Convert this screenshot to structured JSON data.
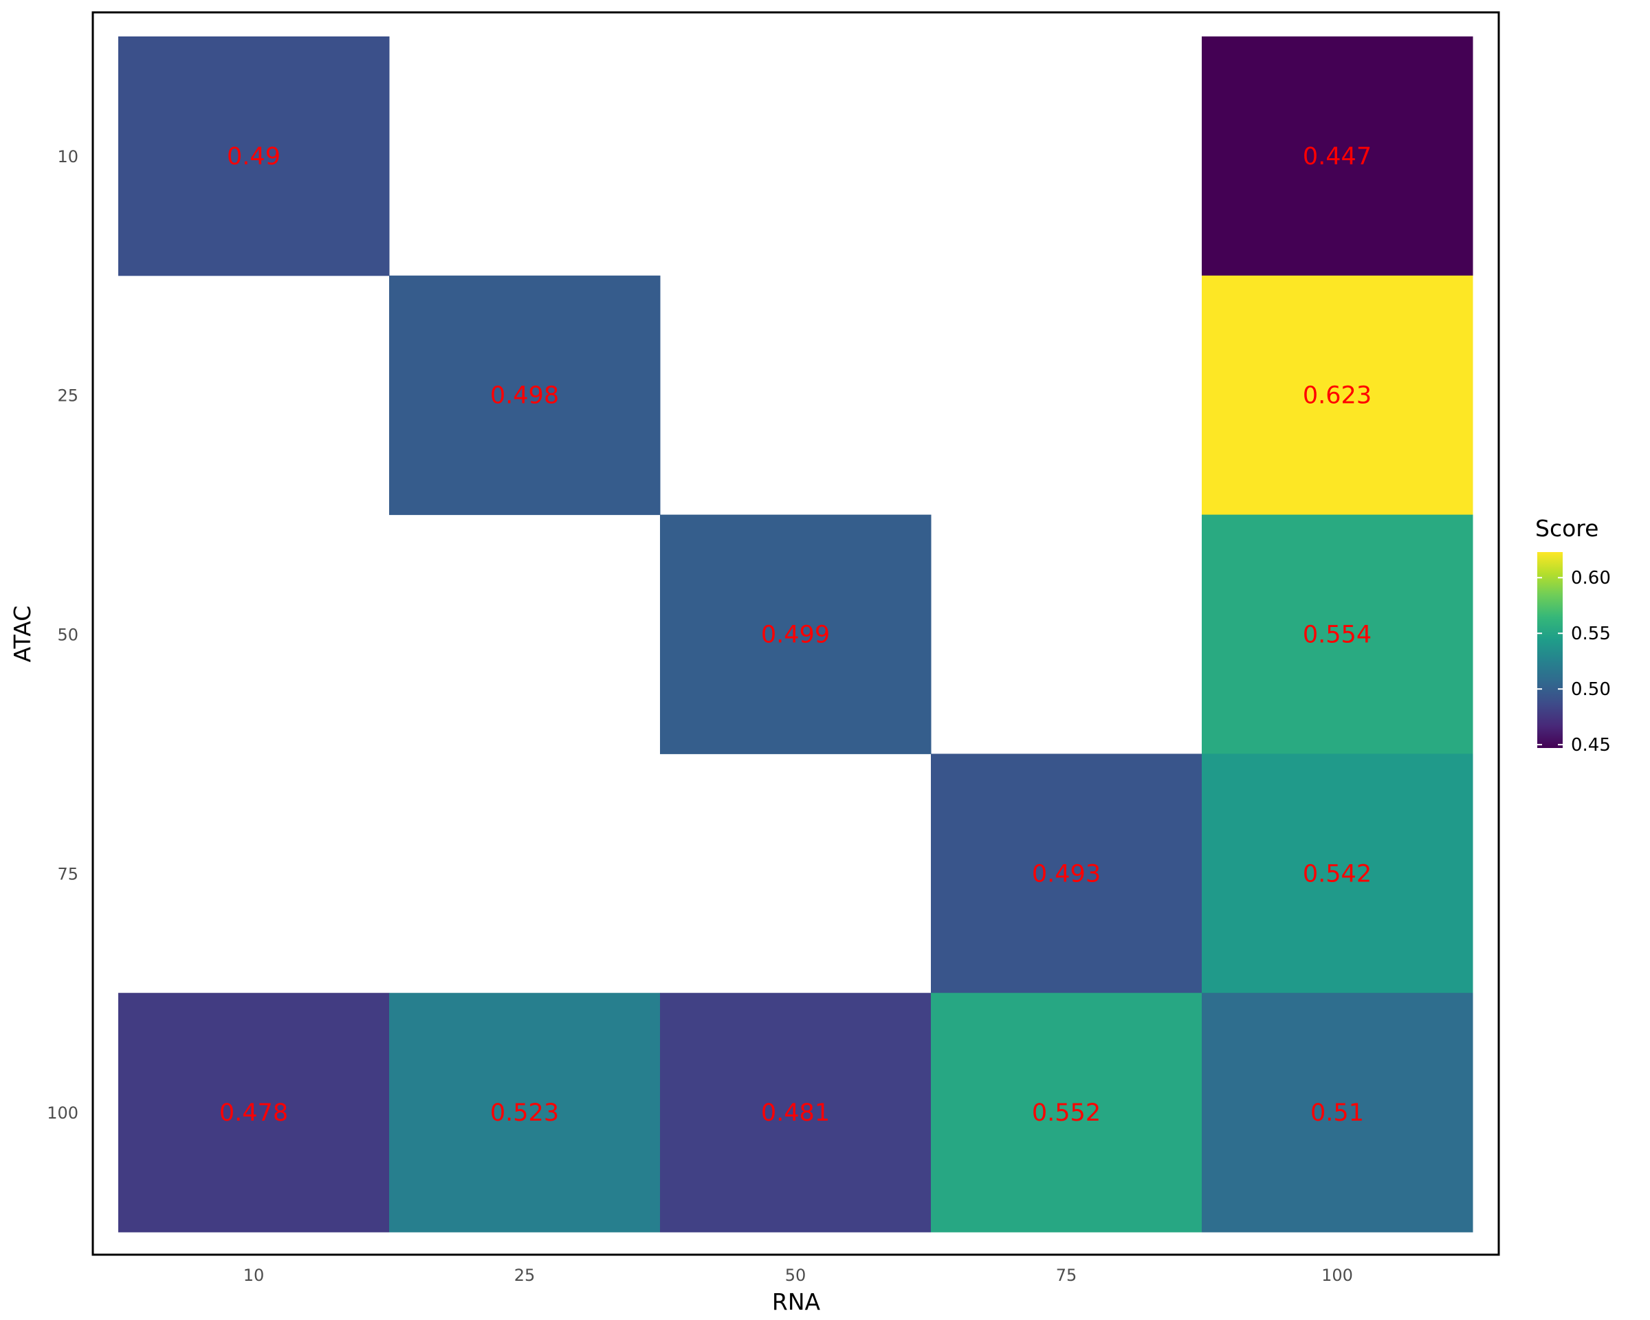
{
  "chart_data": {
    "type": "heatmap",
    "xlabel": "RNA",
    "ylabel": "ATAC",
    "x_categories": [
      "10",
      "25",
      "50",
      "75",
      "100"
    ],
    "y_categories": [
      "10",
      "25",
      "50",
      "75",
      "100"
    ],
    "cells": [
      {
        "x": "10",
        "y": "10",
        "value": 0.49,
        "label": "0.49"
      },
      {
        "x": "100",
        "y": "10",
        "value": 0.447,
        "label": "0.447"
      },
      {
        "x": "25",
        "y": "25",
        "value": 0.498,
        "label": "0.498"
      },
      {
        "x": "100",
        "y": "25",
        "value": 0.623,
        "label": "0.623"
      },
      {
        "x": "50",
        "y": "50",
        "value": 0.499,
        "label": "0.499"
      },
      {
        "x": "100",
        "y": "50",
        "value": 0.554,
        "label": "0.554"
      },
      {
        "x": "75",
        "y": "75",
        "value": 0.493,
        "label": "0.493"
      },
      {
        "x": "100",
        "y": "75",
        "value": 0.542,
        "label": "0.542"
      },
      {
        "x": "10",
        "y": "100",
        "value": 0.478,
        "label": "0.478"
      },
      {
        "x": "25",
        "y": "100",
        "value": 0.523,
        "label": "0.523"
      },
      {
        "x": "50",
        "y": "100",
        "value": 0.481,
        "label": "0.481"
      },
      {
        "x": "75",
        "y": "100",
        "value": 0.552,
        "label": "0.552"
      },
      {
        "x": "100",
        "y": "100",
        "value": 0.51,
        "label": "0.51"
      }
    ],
    "color_scale": {
      "name": "viridis",
      "domain": [
        0.447,
        0.623
      ],
      "stops": [
        "#440154",
        "#482878",
        "#3E4A89",
        "#31688E",
        "#26828E",
        "#1F9E89",
        "#35B779",
        "#6DCD59",
        "#B4DE2C",
        "#FDE725"
      ]
    },
    "label_color": "#ff0000",
    "legend": {
      "title": "Score",
      "ticks": [
        {
          "value": 0.45,
          "label": "0.45"
        },
        {
          "value": 0.5,
          "label": "0.50"
        },
        {
          "value": 0.55,
          "label": "0.55"
        },
        {
          "value": 0.6,
          "label": "0.60"
        }
      ],
      "position": "right"
    },
    "grid": false
  }
}
